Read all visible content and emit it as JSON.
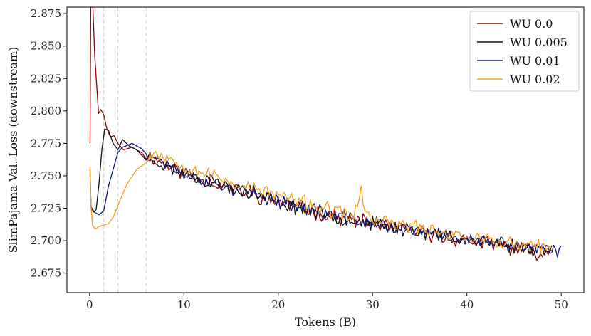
{
  "chart_data": {
    "type": "line",
    "title": "",
    "xlabel": "Tokens (B)",
    "ylabel": "SlimPajama Val. Loss (downstream)",
    "xlim": [
      -2.4,
      52.4
    ],
    "ylim": [
      2.66,
      2.88
    ],
    "xticks": [
      0,
      10,
      20,
      30,
      40,
      50
    ],
    "yticks": [
      2.675,
      2.7,
      2.725,
      2.75,
      2.775,
      2.8,
      2.825,
      2.85,
      2.875
    ],
    "grid": false,
    "legend_position": "top-right",
    "vlines": [
      1.5,
      3.0,
      6.0
    ],
    "series": [
      {
        "name": "WU 0.0",
        "label": "WU 0.0",
        "color": "#8b0000",
        "anchors": [
          [
            0.05,
            2.775
          ],
          [
            0.12,
            2.88
          ],
          [
            0.35,
            2.88
          ],
          [
            0.55,
            2.842
          ],
          [
            0.75,
            2.82
          ],
          [
            0.95,
            2.798
          ],
          [
            1.2,
            2.801
          ],
          [
            1.5,
            2.797
          ],
          [
            1.8,
            2.787
          ],
          [
            2.2,
            2.78
          ],
          [
            2.6,
            2.781
          ],
          [
            3.0,
            2.775
          ],
          [
            3.6,
            2.77
          ],
          [
            4.5,
            2.772
          ],
          [
            5.5,
            2.768
          ],
          [
            7,
            2.763
          ],
          [
            10,
            2.752
          ],
          [
            15,
            2.74
          ],
          [
            20,
            2.73
          ],
          [
            25,
            2.72
          ],
          [
            30,
            2.713
          ],
          [
            35,
            2.706
          ],
          [
            40,
            2.7
          ],
          [
            45,
            2.694
          ],
          [
            48,
            2.69
          ],
          [
            49,
            2.693
          ]
        ],
        "noise": 0.0045,
        "seed": 11
      },
      {
        "name": "WU 0.005",
        "label": "WU 0.005",
        "color": "#111111",
        "anchors": [
          [
            0.05,
            2.752
          ],
          [
            0.15,
            2.726
          ],
          [
            0.4,
            2.722
          ],
          [
            0.7,
            2.724
          ],
          [
            1.0,
            2.744
          ],
          [
            1.3,
            2.77
          ],
          [
            1.6,
            2.786
          ],
          [
            2.0,
            2.785
          ],
          [
            2.5,
            2.775
          ],
          [
            3.0,
            2.77
          ],
          [
            3.5,
            2.778
          ],
          [
            4.2,
            2.773
          ],
          [
            5,
            2.77
          ],
          [
            6,
            2.765
          ],
          [
            8,
            2.758
          ],
          [
            10,
            2.752
          ],
          [
            15,
            2.741
          ],
          [
            20,
            2.73
          ],
          [
            25,
            2.72
          ],
          [
            30,
            2.713
          ],
          [
            35,
            2.707
          ],
          [
            40,
            2.701
          ],
          [
            45,
            2.696
          ],
          [
            49,
            2.693
          ]
        ],
        "noise": 0.0045,
        "seed": 23
      },
      {
        "name": "WU 0.01",
        "label": "WU 0.01",
        "color": "#0a1a7a",
        "anchors": [
          [
            0.05,
            2.755
          ],
          [
            0.15,
            2.726
          ],
          [
            0.5,
            2.722
          ],
          [
            1.0,
            2.72
          ],
          [
            1.5,
            2.723
          ],
          [
            2.0,
            2.742
          ],
          [
            2.5,
            2.755
          ],
          [
            3.0,
            2.768
          ],
          [
            3.5,
            2.772
          ],
          [
            4.5,
            2.775
          ],
          [
            5.5,
            2.771
          ],
          [
            6.5,
            2.766
          ],
          [
            8,
            2.76
          ],
          [
            10,
            2.752
          ],
          [
            15,
            2.741
          ],
          [
            20,
            2.731
          ],
          [
            25,
            2.721
          ],
          [
            30,
            2.713
          ],
          [
            35,
            2.707
          ],
          [
            40,
            2.701
          ],
          [
            45,
            2.696
          ],
          [
            49,
            2.692
          ],
          [
            50,
            2.691
          ]
        ],
        "noise": 0.0045,
        "seed": 37
      },
      {
        "name": "WU 0.02",
        "label": "WU 0.02",
        "color": "#f5a020",
        "anchors": [
          [
            0.05,
            2.757
          ],
          [
            0.15,
            2.727
          ],
          [
            0.3,
            2.712
          ],
          [
            0.6,
            2.709
          ],
          [
            1.0,
            2.711
          ],
          [
            1.5,
            2.712
          ],
          [
            2.0,
            2.713
          ],
          [
            2.5,
            2.718
          ],
          [
            3.0,
            2.727
          ],
          [
            3.5,
            2.736
          ],
          [
            4.0,
            2.744
          ],
          [
            5.0,
            2.755
          ],
          [
            6.0,
            2.764
          ],
          [
            7.0,
            2.768
          ],
          [
            8.0,
            2.765
          ],
          [
            10,
            2.758
          ],
          [
            15,
            2.745
          ],
          [
            20,
            2.735
          ],
          [
            25,
            2.724
          ],
          [
            28,
            2.719
          ],
          [
            28.8,
            2.738
          ],
          [
            29.3,
            2.72
          ],
          [
            30,
            2.716
          ],
          [
            35,
            2.71
          ],
          [
            40,
            2.703
          ],
          [
            45,
            2.697
          ],
          [
            49,
            2.694
          ]
        ],
        "noise": 0.0045,
        "seed": 53
      }
    ]
  }
}
